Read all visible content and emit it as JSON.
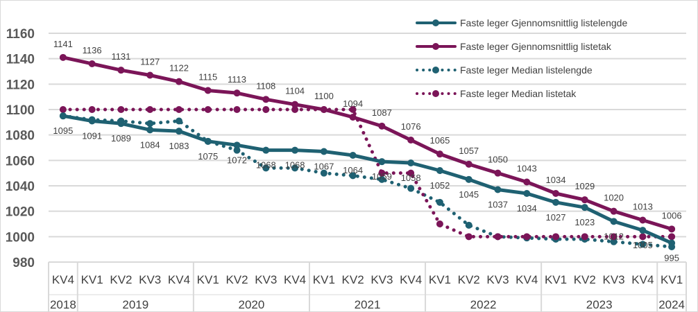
{
  "chart_data": {
    "type": "line",
    "title": "",
    "xlabel": "",
    "ylabel": "",
    "ylim": [
      980,
      1160
    ],
    "yticks": [
      980,
      1000,
      1020,
      1040,
      1060,
      1080,
      1100,
      1120,
      1140,
      1160
    ],
    "grid": true,
    "legend_position": "top-right",
    "categories": [
      "KV4",
      "KV1",
      "KV2",
      "KV3",
      "KV4",
      "KV1",
      "KV2",
      "KV3",
      "KV4",
      "KV1",
      "KV2",
      "KV3",
      "KV4",
      "KV1",
      "KV2",
      "KV3",
      "KV4",
      "KV1",
      "KV2",
      "KV3",
      "KV4",
      "KV1"
    ],
    "years": [
      {
        "label": "2018",
        "span": 1
      },
      {
        "label": "2019",
        "span": 4
      },
      {
        "label": "2020",
        "span": 4
      },
      {
        "label": "2021",
        "span": 4
      },
      {
        "label": "2022",
        "span": 4
      },
      {
        "label": "2023",
        "span": 4
      },
      {
        "label": "2024",
        "span": 1
      }
    ],
    "series": [
      {
        "name": "Faste leger Gjennomsnittlig listelengde",
        "color": "#1f6172",
        "style": "solid",
        "labels": "below",
        "values": [
          1095,
          1091,
          1089,
          1084,
          1083,
          1075,
          1072,
          1068,
          1068,
          1067,
          1064,
          1059,
          1058,
          1052,
          1045,
          1037,
          1034,
          1027,
          1023,
          1012,
          1005,
          995
        ]
      },
      {
        "name": "Faste leger Gjennomsnittlig listetak",
        "color": "#7b1558",
        "style": "solid",
        "labels": "above",
        "values": [
          1141,
          1136,
          1131,
          1127,
          1122,
          1115,
          1113,
          1108,
          1104,
          1100,
          1094,
          1087,
          1076,
          1065,
          1057,
          1050,
          1043,
          1034,
          1029,
          1020,
          1013,
          1006
        ]
      },
      {
        "name": "Faste leger Median listelengde",
        "color": "#1f6172",
        "style": "dotted",
        "labels": "none",
        "values": [
          1095,
          1092,
          1091,
          1089,
          1091,
          1075,
          1068,
          1054,
          1054,
          1050,
          1048,
          1045,
          1038,
          1027,
          1009,
          1000,
          999,
          998,
          998,
          996,
          994,
          992
        ]
      },
      {
        "name": "Faste leger Median listetak",
        "color": "#7b1558",
        "style": "dotted",
        "labels": "none",
        "values": [
          1100,
          1100,
          1100,
          1100,
          1100,
          1100,
          1100,
          1100,
          1100,
          1100,
          1100,
          1050,
          1050,
          1010,
          1000,
          1000,
          1000,
          1000,
          1000,
          1000,
          1000,
          1000
        ]
      }
    ]
  }
}
